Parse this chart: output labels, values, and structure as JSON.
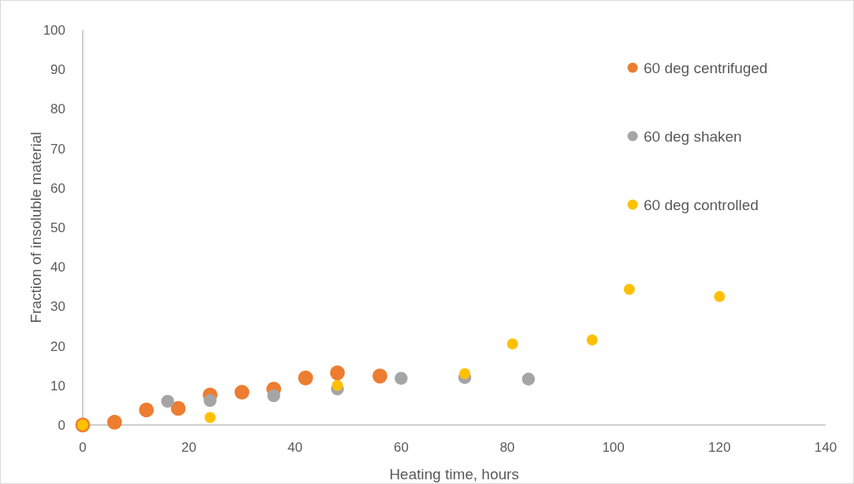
{
  "chart_data": {
    "type": "scatter",
    "xlabel": "Heating time, hours",
    "ylabel": "Fraction of insoluble material",
    "xlim": [
      0,
      140
    ],
    "xticks": [
      0,
      20,
      40,
      60,
      80,
      100,
      120,
      140
    ],
    "ylim": [
      0,
      100
    ],
    "yticks": [
      0,
      10,
      20,
      30,
      40,
      50,
      60,
      70,
      80,
      90,
      100
    ],
    "grid": false,
    "legend": "top right",
    "marker": "circle",
    "series": [
      {
        "name": "60 deg centrifuged",
        "color": "#ed7d31",
        "x": [
          0,
          6,
          12,
          18,
          24,
          30,
          36,
          42,
          48,
          56
        ],
        "values": [
          0,
          0.7,
          3.8,
          4.2,
          7.6,
          8.3,
          9.1,
          11.9,
          13.2,
          12.4
        ]
      },
      {
        "name": "60 deg shaken",
        "color": "#a5a5a5",
        "x": [
          16,
          24,
          36,
          48,
          60,
          72,
          84
        ],
        "values": [
          6.0,
          6.2,
          7.4,
          9.1,
          11.8,
          12.0,
          11.6
        ]
      },
      {
        "name": "60 deg controlled",
        "color": "#ffc000",
        "x": [
          0,
          24,
          48,
          72,
          81,
          96,
          103,
          120
        ],
        "values": [
          0,
          1.9,
          10.0,
          13.0,
          20.5,
          21.5,
          34.3,
          32.5
        ]
      }
    ]
  }
}
